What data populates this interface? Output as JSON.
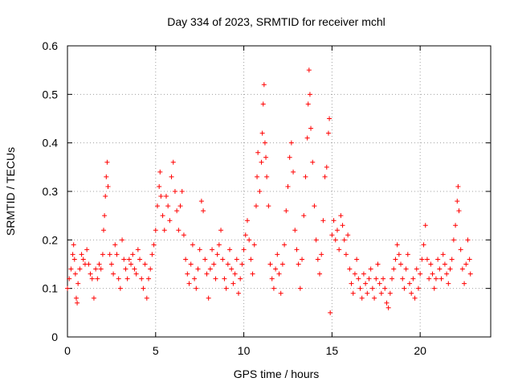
{
  "chart_data": {
    "type": "scatter",
    "title": "Day 334 of 2023, SRMTID for receiver mchl",
    "xlabel": "GPS time / hours",
    "ylabel": "SRMTID / TECUs",
    "xlim": [
      0,
      24
    ],
    "ylim": [
      0,
      0.6
    ],
    "xticks": [
      0,
      5,
      10,
      15,
      20
    ],
    "xtick_labels": [
      "0",
      "5",
      "10",
      "15",
      "20"
    ],
    "yticks": [
      0,
      0.1,
      0.2,
      0.3,
      0.4,
      0.5,
      0.6
    ],
    "ytick_labels": [
      "0",
      "0.1",
      "0.2",
      "0.3",
      "0.4",
      "0.5",
      "0.6"
    ],
    "grid": true,
    "marker": "+",
    "color": "#ff0000",
    "series": [
      {
        "name": "SRMTID",
        "points": [
          [
            0.0,
            0.1
          ],
          [
            0.1,
            0.12
          ],
          [
            0.2,
            0.14
          ],
          [
            0.3,
            0.17
          ],
          [
            0.35,
            0.19
          ],
          [
            0.4,
            0.16
          ],
          [
            0.45,
            0.13
          ],
          [
            0.5,
            0.08
          ],
          [
            0.55,
            0.07
          ],
          [
            0.6,
            0.11
          ],
          [
            0.7,
            0.14
          ],
          [
            0.8,
            0.17
          ],
          [
            0.9,
            0.16
          ],
          [
            1.0,
            0.15
          ],
          [
            1.1,
            0.18
          ],
          [
            1.2,
            0.15
          ],
          [
            1.3,
            0.13
          ],
          [
            1.4,
            0.12
          ],
          [
            1.5,
            0.08
          ],
          [
            1.6,
            0.14
          ],
          [
            1.7,
            0.12
          ],
          [
            1.8,
            0.15
          ],
          [
            1.9,
            0.14
          ],
          [
            2.0,
            0.17
          ],
          [
            2.05,
            0.22
          ],
          [
            2.1,
            0.25
          ],
          [
            2.15,
            0.29
          ],
          [
            2.2,
            0.33
          ],
          [
            2.25,
            0.36
          ],
          [
            2.3,
            0.31
          ],
          [
            2.4,
            0.17
          ],
          [
            2.5,
            0.15
          ],
          [
            2.6,
            0.13
          ],
          [
            2.7,
            0.19
          ],
          [
            2.8,
            0.17
          ],
          [
            2.9,
            0.12
          ],
          [
            3.0,
            0.1
          ],
          [
            3.1,
            0.2
          ],
          [
            3.2,
            0.16
          ],
          [
            3.3,
            0.14
          ],
          [
            3.4,
            0.12
          ],
          [
            3.5,
            0.16
          ],
          [
            3.6,
            0.15
          ],
          [
            3.7,
            0.17
          ],
          [
            3.8,
            0.14
          ],
          [
            3.9,
            0.13
          ],
          [
            4.0,
            0.18
          ],
          [
            4.1,
            0.16
          ],
          [
            4.2,
            0.12
          ],
          [
            4.3,
            0.1
          ],
          [
            4.4,
            0.15
          ],
          [
            4.5,
            0.08
          ],
          [
            4.6,
            0.12
          ],
          [
            4.7,
            0.14
          ],
          [
            4.8,
            0.17
          ],
          [
            4.9,
            0.19
          ],
          [
            5.0,
            0.22
          ],
          [
            5.1,
            0.27
          ],
          [
            5.2,
            0.31
          ],
          [
            5.25,
            0.34
          ],
          [
            5.3,
            0.29
          ],
          [
            5.4,
            0.25
          ],
          [
            5.5,
            0.22
          ],
          [
            5.6,
            0.29
          ],
          [
            5.7,
            0.27
          ],
          [
            5.8,
            0.24
          ],
          [
            5.9,
            0.33
          ],
          [
            6.0,
            0.36
          ],
          [
            6.1,
            0.3
          ],
          [
            6.2,
            0.26
          ],
          [
            6.3,
            0.22
          ],
          [
            6.4,
            0.27
          ],
          [
            6.5,
            0.3
          ],
          [
            6.6,
            0.21
          ],
          [
            6.7,
            0.16
          ],
          [
            6.8,
            0.13
          ],
          [
            6.9,
            0.11
          ],
          [
            7.0,
            0.15
          ],
          [
            7.1,
            0.19
          ],
          [
            7.2,
            0.12
          ],
          [
            7.3,
            0.1
          ],
          [
            7.4,
            0.14
          ],
          [
            7.5,
            0.18
          ],
          [
            7.6,
            0.28
          ],
          [
            7.7,
            0.26
          ],
          [
            7.8,
            0.16
          ],
          [
            7.9,
            0.13
          ],
          [
            8.0,
            0.08
          ],
          [
            8.1,
            0.14
          ],
          [
            8.2,
            0.18
          ],
          [
            8.3,
            0.15
          ],
          [
            8.4,
            0.12
          ],
          [
            8.5,
            0.17
          ],
          [
            8.6,
            0.19
          ],
          [
            8.7,
            0.22
          ],
          [
            8.8,
            0.16
          ],
          [
            8.9,
            0.12
          ],
          [
            9.0,
            0.1
          ],
          [
            9.1,
            0.15
          ],
          [
            9.2,
            0.18
          ],
          [
            9.3,
            0.14
          ],
          [
            9.4,
            0.11
          ],
          [
            9.5,
            0.13
          ],
          [
            9.6,
            0.16
          ],
          [
            9.7,
            0.09
          ],
          [
            9.8,
            0.12
          ],
          [
            9.9,
            0.15
          ],
          [
            10.0,
            0.18
          ],
          [
            10.1,
            0.21
          ],
          [
            10.2,
            0.24
          ],
          [
            10.3,
            0.2
          ],
          [
            10.4,
            0.16
          ],
          [
            10.5,
            0.13
          ],
          [
            10.6,
            0.19
          ],
          [
            10.7,
            0.27
          ],
          [
            10.75,
            0.33
          ],
          [
            10.8,
            0.38
          ],
          [
            10.9,
            0.3
          ],
          [
            11.0,
            0.36
          ],
          [
            11.05,
            0.42
          ],
          [
            11.1,
            0.48
          ],
          [
            11.15,
            0.52
          ],
          [
            11.2,
            0.4
          ],
          [
            11.25,
            0.37
          ],
          [
            11.3,
            0.33
          ],
          [
            11.4,
            0.27
          ],
          [
            11.5,
            0.15
          ],
          [
            11.6,
            0.12
          ],
          [
            11.7,
            0.1
          ],
          [
            11.8,
            0.14
          ],
          [
            11.9,
            0.17
          ],
          [
            12.0,
            0.13
          ],
          [
            12.1,
            0.09
          ],
          [
            12.2,
            0.15
          ],
          [
            12.3,
            0.19
          ],
          [
            12.4,
            0.26
          ],
          [
            12.5,
            0.31
          ],
          [
            12.6,
            0.37
          ],
          [
            12.7,
            0.4
          ],
          [
            12.8,
            0.34
          ],
          [
            12.9,
            0.22
          ],
          [
            13.0,
            0.18
          ],
          [
            13.1,
            0.15
          ],
          [
            13.2,
            0.1
          ],
          [
            13.3,
            0.16
          ],
          [
            13.4,
            0.25
          ],
          [
            13.5,
            0.33
          ],
          [
            13.6,
            0.41
          ],
          [
            13.65,
            0.48
          ],
          [
            13.7,
            0.55
          ],
          [
            13.75,
            0.5
          ],
          [
            13.8,
            0.43
          ],
          [
            13.9,
            0.36
          ],
          [
            14.0,
            0.27
          ],
          [
            14.1,
            0.2
          ],
          [
            14.2,
            0.16
          ],
          [
            14.3,
            0.13
          ],
          [
            14.4,
            0.17
          ],
          [
            14.5,
            0.24
          ],
          [
            14.6,
            0.33
          ],
          [
            14.7,
            0.35
          ],
          [
            14.8,
            0.42
          ],
          [
            14.85,
            0.45
          ],
          [
            14.9,
            0.05
          ],
          [
            15.0,
            0.21
          ],
          [
            15.1,
            0.24
          ],
          [
            15.2,
            0.2
          ],
          [
            15.3,
            0.22
          ],
          [
            15.4,
            0.18
          ],
          [
            15.5,
            0.25
          ],
          [
            15.6,
            0.23
          ],
          [
            15.7,
            0.2
          ],
          [
            15.8,
            0.17
          ],
          [
            15.9,
            0.21
          ],
          [
            16.0,
            0.14
          ],
          [
            16.1,
            0.11
          ],
          [
            16.2,
            0.09
          ],
          [
            16.3,
            0.13
          ],
          [
            16.4,
            0.16
          ],
          [
            16.5,
            0.12
          ],
          [
            16.6,
            0.1
          ],
          [
            16.7,
            0.08
          ],
          [
            16.8,
            0.13
          ],
          [
            16.9,
            0.11
          ],
          [
            17.0,
            0.09
          ],
          [
            17.1,
            0.12
          ],
          [
            17.2,
            0.14
          ],
          [
            17.3,
            0.1
          ],
          [
            17.4,
            0.08
          ],
          [
            17.5,
            0.12
          ],
          [
            17.6,
            0.15
          ],
          [
            17.7,
            0.11
          ],
          [
            17.8,
            0.09
          ],
          [
            17.9,
            0.12
          ],
          [
            18.0,
            0.1
          ],
          [
            18.1,
            0.07
          ],
          [
            18.2,
            0.06
          ],
          [
            18.3,
            0.09
          ],
          [
            18.4,
            0.12
          ],
          [
            18.5,
            0.14
          ],
          [
            18.6,
            0.16
          ],
          [
            18.7,
            0.19
          ],
          [
            18.8,
            0.17
          ],
          [
            18.9,
            0.15
          ],
          [
            19.0,
            0.12
          ],
          [
            19.1,
            0.1
          ],
          [
            19.2,
            0.14
          ],
          [
            19.3,
            0.17
          ],
          [
            19.4,
            0.11
          ],
          [
            19.5,
            0.09
          ],
          [
            19.6,
            0.12
          ],
          [
            19.7,
            0.08
          ],
          [
            19.8,
            0.14
          ],
          [
            19.9,
            0.1
          ],
          [
            20.0,
            0.13
          ],
          [
            20.1,
            0.16
          ],
          [
            20.2,
            0.19
          ],
          [
            20.3,
            0.23
          ],
          [
            20.4,
            0.16
          ],
          [
            20.5,
            0.12
          ],
          [
            20.6,
            0.15
          ],
          [
            20.7,
            0.13
          ],
          [
            20.8,
            0.1
          ],
          [
            20.9,
            0.12
          ],
          [
            21.0,
            0.16
          ],
          [
            21.1,
            0.14
          ],
          [
            21.2,
            0.12
          ],
          [
            21.3,
            0.17
          ],
          [
            21.4,
            0.15
          ],
          [
            21.5,
            0.13
          ],
          [
            21.6,
            0.11
          ],
          [
            21.7,
            0.14
          ],
          [
            21.8,
            0.16
          ],
          [
            21.9,
            0.2
          ],
          [
            22.0,
            0.23
          ],
          [
            22.1,
            0.28
          ],
          [
            22.15,
            0.31
          ],
          [
            22.2,
            0.26
          ],
          [
            22.3,
            0.18
          ],
          [
            22.4,
            0.14
          ],
          [
            22.5,
            0.11
          ],
          [
            22.6,
            0.15
          ],
          [
            22.7,
            0.2
          ],
          [
            22.8,
            0.16
          ],
          [
            22.85,
            0.13
          ]
        ]
      }
    ]
  }
}
